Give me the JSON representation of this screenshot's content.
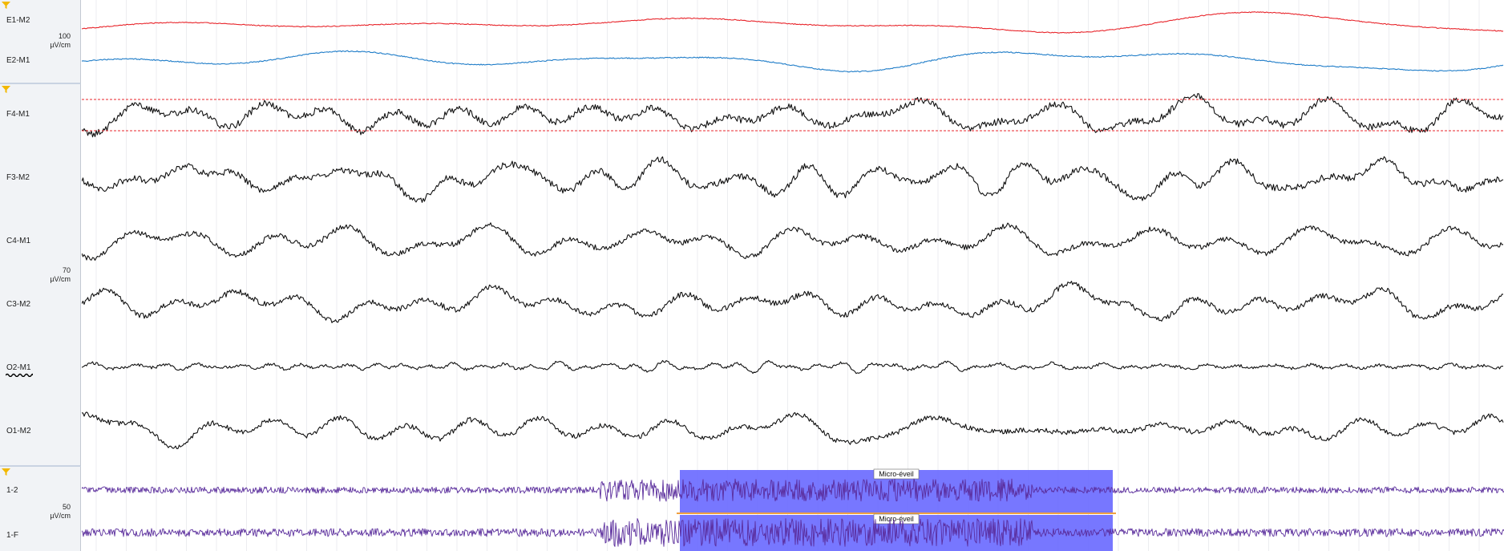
{
  "groups": [
    {
      "id": "eog",
      "scale_value": "100",
      "scale_unit": "µV/cm",
      "filter_icon": "funnel-icon",
      "channels": [
        {
          "label": "E1-M2",
          "color": "#e8252b",
          "squiggle": false
        },
        {
          "label": "E2-M1",
          "color": "#1e7cc8",
          "squiggle": false
        }
      ]
    },
    {
      "id": "eeg",
      "scale_value": "70",
      "scale_unit": "µV/cm",
      "filter_icon": "funnel-icon",
      "channels": [
        {
          "label": "F4-M1",
          "color": "#111111",
          "squiggle": false
        },
        {
          "label": "F3-M2",
          "color": "#111111",
          "squiggle": false
        },
        {
          "label": "C4-M1",
          "color": "#111111",
          "squiggle": false
        },
        {
          "label": "C3-M2",
          "color": "#111111",
          "squiggle": false
        },
        {
          "label": "O2-M1",
          "color": "#111111",
          "squiggle": true
        },
        {
          "label": "O1-M2",
          "color": "#111111",
          "squiggle": false
        }
      ]
    },
    {
      "id": "emg",
      "scale_value": "50",
      "scale_unit": "µV/cm",
      "filter_icon": "funnel-icon",
      "channels": [
        {
          "label": "1-2",
          "color": "#5a2d9c",
          "squiggle": false
        },
        {
          "label": "1-F",
          "color": "#5a2d9c",
          "squiggle": false
        }
      ]
    }
  ],
  "events": [
    {
      "label": "Micro-éveil",
      "color": "#6b6bff"
    },
    {
      "label": "Micro-éveil",
      "color": "#6b6bff"
    }
  ],
  "colors": {
    "threshold_line": "#e8252b",
    "event_separator": "#f0a040",
    "panel_bg": "#f1f3f6",
    "grid": "#e4e6ea"
  }
}
